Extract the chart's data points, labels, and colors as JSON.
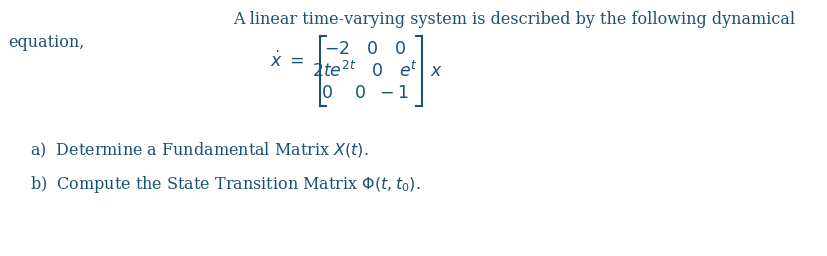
{
  "title_line1": "A linear time-varying system is described by the following dynamical",
  "title_line2": "equation,",
  "text_color": "#1a5276",
  "bg_color": "#ffffff",
  "part_a": "a)  Determine a Fundamental Matrix $X(t)$.",
  "part_b": "b)  Compute the State Transition Matrix $\\Phi(t, t_0)$.",
  "fontsize_title": 11.5,
  "fontsize_parts": 11.5,
  "fontsize_eq": 12.5
}
